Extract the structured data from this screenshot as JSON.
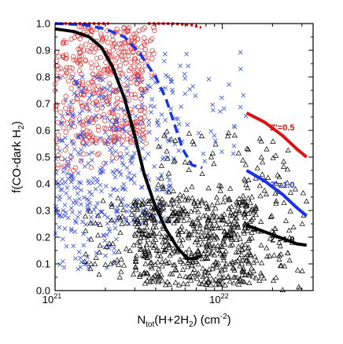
{
  "chart_data": {
    "type": "scatter",
    "x_scale": "log",
    "xlim": [
      1e+21,
      3.5e+22
    ],
    "ylim": [
      0.0,
      1.0
    ],
    "xlabel": {
      "main": "N",
      "sub": "tot",
      "rest": "(H+2H",
      "sub2": "2",
      "unit": ") (cm",
      "sup": "-2",
      "close": ")"
    },
    "ylabel": {
      "main": "f(CO-dark H",
      "sub": "2",
      "close": ")"
    },
    "x_ticks": [
      {
        "value": 1e+21,
        "base": "10",
        "exp": "21"
      },
      {
        "value": 1e+22,
        "base": "10",
        "exp": "22"
      }
    ],
    "y_ticks": [
      "0.0",
      "0.1",
      "0.2",
      "0.3",
      "0.4",
      "0.5",
      "0.6",
      "0.7",
      "0.8",
      "0.9",
      "1.0"
    ],
    "grid": false,
    "series": [
      {
        "kind": "scatter",
        "marker": "circle",
        "color": "#dd3333",
        "clusters": [
          {
            "xmin": 1e+21,
            "xmax": 3.5e+21,
            "ymin": 0.55,
            "ymax": 0.99,
            "n": 420
          },
          {
            "xmin": 2.5e+21,
            "xmax": 4e+21,
            "ymin": 0.8,
            "ymax": 0.99,
            "n": 40
          },
          {
            "xmin": 1e+21,
            "xmax": 2.5e+21,
            "ymin": 0.45,
            "ymax": 0.6,
            "n": 30
          }
        ]
      },
      {
        "kind": "scatter",
        "marker": "cross",
        "color": "#3a4fd8",
        "clusters": [
          {
            "xmin": 1e+21,
            "xmax": 5e+21,
            "ymin": 0.25,
            "ymax": 0.8,
            "n": 320
          },
          {
            "xmin": 1e+21,
            "xmax": 2.5e+21,
            "ymin": 0.08,
            "ymax": 0.45,
            "n": 90
          },
          {
            "xmin": 4e+21,
            "xmax": 1.5e+22,
            "ymin": 0.45,
            "ymax": 0.9,
            "n": 50
          }
        ]
      },
      {
        "kind": "scatter",
        "marker": "triangle",
        "color": "#000000",
        "clusters": [
          {
            "xmin": 3e+21,
            "xmax": 1.6e+22,
            "ymin": 0.02,
            "ymax": 0.35,
            "n": 520
          },
          {
            "xmin": 4e+21,
            "xmax": 2.5e+22,
            "ymin": 0.1,
            "ymax": 0.6,
            "n": 150
          },
          {
            "xmin": 1.5e+21,
            "xmax": 4e+21,
            "ymin": 0.05,
            "ymax": 0.35,
            "n": 70
          },
          {
            "xmin": 1.2e+22,
            "xmax": 3.2e+22,
            "ymin": 0.0,
            "ymax": 0.45,
            "n": 60
          }
        ]
      },
      {
        "kind": "line",
        "style": "dotted",
        "color": "#dd1111",
        "points": [
          [
            1e+21,
            1.0
          ],
          [
            2.1e+21,
            1.0
          ]
        ]
      },
      {
        "kind": "line",
        "style": "dotted",
        "color": "#dd1111",
        "points": [
          [
            3.6e+21,
            1.0
          ],
          [
            5e+21,
            1.0
          ],
          [
            6.5e+21,
            0.995
          ],
          [
            7.5e+21,
            0.985
          ]
        ]
      },
      {
        "kind": "line",
        "style": "dashed",
        "color": "#1a33e6",
        "points": [
          [
            1e+21,
            1.0
          ],
          [
            1.5e+21,
            0.995
          ],
          [
            2e+21,
            0.98
          ],
          [
            2.6e+21,
            0.95
          ],
          [
            3.2e+21,
            0.89
          ],
          [
            4e+21,
            0.8
          ],
          [
            4.6e+21,
            0.72
          ],
          [
            5.2e+21,
            0.62
          ],
          [
            5.8e+21,
            0.53
          ],
          [
            6.6e+21,
            0.47
          ],
          [
            7.6e+21,
            0.46
          ]
        ]
      },
      {
        "kind": "line",
        "style": "solid",
        "color": "#000000",
        "points": [
          [
            1e+21,
            0.98
          ],
          [
            1.3e+21,
            0.97
          ],
          [
            1.6e+21,
            0.95
          ],
          [
            1.9e+21,
            0.91
          ],
          [
            2.2e+21,
            0.84
          ],
          [
            2.6e+21,
            0.72
          ],
          [
            3e+21,
            0.58
          ],
          [
            3.4e+21,
            0.44
          ],
          [
            3.9e+21,
            0.33
          ],
          [
            4.6e+21,
            0.23
          ],
          [
            5.4e+21,
            0.16
          ],
          [
            6.2e+21,
            0.12
          ],
          [
            6.8e+21,
            0.12
          ],
          [
            7.5e+21,
            0.13
          ]
        ]
      },
      {
        "kind": "line",
        "style": "solid",
        "color": "#dd1111",
        "label": "Z′=0.5",
        "points": [
          [
            1.4e+22,
            0.665
          ],
          [
            1.8e+22,
            0.63
          ],
          [
            2.3e+22,
            0.58
          ],
          [
            2.8e+22,
            0.53
          ],
          [
            3.2e+22,
            0.5
          ]
        ]
      },
      {
        "kind": "line",
        "style": "solid",
        "color": "#1a33e6",
        "label": "Z′=1.0",
        "points": [
          [
            1.4e+22,
            0.45
          ],
          [
            1.8e+22,
            0.41
          ],
          [
            2.3e+22,
            0.36
          ],
          [
            2.8e+22,
            0.31
          ],
          [
            3.2e+22,
            0.28
          ]
        ]
      },
      {
        "kind": "line",
        "style": "solid",
        "color": "#000000",
        "label": "Z′=1.9",
        "points": [
          [
            1.4e+22,
            0.245
          ],
          [
            1.8e+22,
            0.22
          ],
          [
            2.3e+22,
            0.195
          ],
          [
            2.8e+22,
            0.175
          ],
          [
            3.2e+22,
            0.17
          ]
        ]
      }
    ]
  }
}
